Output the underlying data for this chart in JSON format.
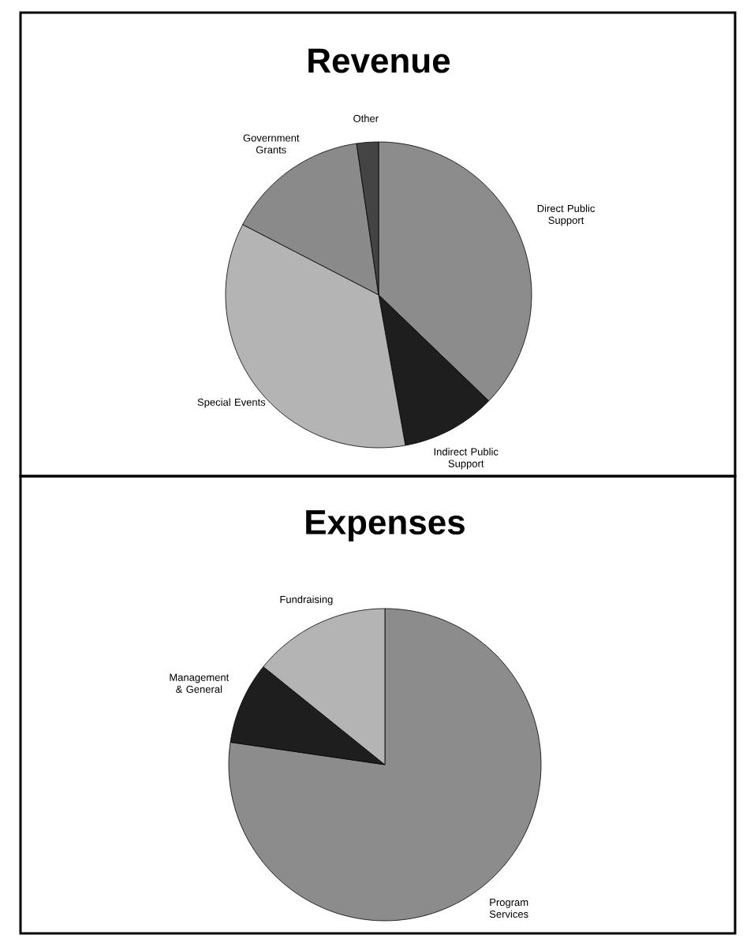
{
  "chart_data": [
    {
      "type": "pie",
      "title": "Revenue",
      "categories": [
        "Direct Public Support",
        "Indirect Public Support",
        "Special Events",
        "Government Grants",
        "Other"
      ],
      "values": [
        37.2,
        10,
        35.4,
        15.1,
        2.3
      ],
      "colors": [
        "#8c8c8c",
        "#1e1e1e",
        "#b4b4b4",
        "#8a8a8a",
        "#444444"
      ]
    },
    {
      "type": "pie",
      "title": "Expenses",
      "categories": [
        "Program Services",
        "Management & General",
        "Fundraising"
      ],
      "values": [
        77.3,
        8.5,
        14.2
      ],
      "colors": [
        "#8c8c8c",
        "#1e1e1e",
        "#b4b4b4"
      ]
    }
  ]
}
